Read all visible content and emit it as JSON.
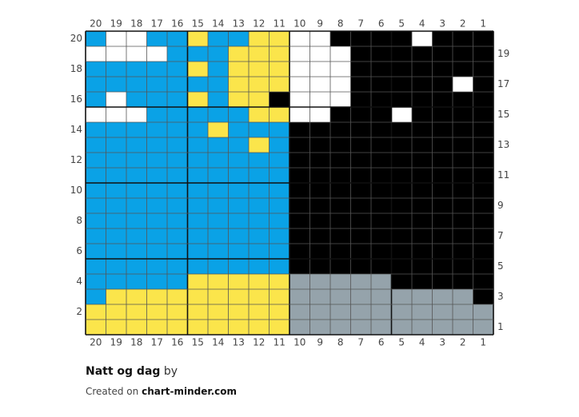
{
  "chart_data": {
    "type": "knitting-chart",
    "columns": 20,
    "rows": 20,
    "column_numbers_top": [
      "20",
      "19",
      "18",
      "17",
      "16",
      "15",
      "14",
      "13",
      "12",
      "11",
      "10",
      "9",
      "8",
      "7",
      "6",
      "5",
      "4",
      "3",
      "2",
      "1"
    ],
    "column_numbers_bottom": [
      "20",
      "19",
      "18",
      "17",
      "16",
      "15",
      "14",
      "13",
      "12",
      "11",
      "10",
      "9",
      "8",
      "7",
      "6",
      "5",
      "4",
      "3",
      "2",
      "1"
    ],
    "row_numbers_left": [
      "20",
      "18",
      "16",
      "14",
      "12",
      "10",
      "8",
      "6",
      "4",
      "2"
    ],
    "row_numbers_right": [
      "19",
      "17",
      "15",
      "13",
      "11",
      "9",
      "7",
      "5",
      "3",
      "1"
    ],
    "palette": {
      "B": "#0aa2e6",
      "Y": "#fbe54b",
      "W": "#ffffff",
      "K": "#000000",
      "G": "#95a3ab"
    },
    "grid_rows_top_to_bottom": [
      "BWWBBYBBYYWWKKKKWKKK",
      "WWWWBBBYYYWWWKKKKKKK",
      "BBBBBYBYYYWWWKKKKKKK",
      "BBBBBBBYYYWWWKKKKKWK",
      "BWBBBYBYYKWWWKKKKKKK",
      "WWWBBBBBYYWWKKKWKKKK",
      "BBBBBBYBBBKKKKKKKKKK",
      "BBBBBBBBYBKKKKKKKKKK",
      "BBBBBBBBBBKKKKKKKKKK",
      "BBBBBBBBBBKKKKKKKKKK",
      "BBBBBBBBBBKKKKKKKKKK",
      "BBBBBBBBBBKKKKKKKKKK",
      "BBBBBBBBBBKKKKKKKKKK",
      "BBBBBBBBBBKKKKKKKKKK",
      "BBBBBBBBBBKKKKKKKKKK",
      "BBBBBBBBBBKKKKKKKKKK",
      "BBBBBYYYYYGGGGGKKKKK",
      "BYYYYYYYYYGGGGGGGGGK",
      "YYYYYYYYYYGGGGGGGGGG",
      "YYYYYYYYYYGGGGGGGGGG"
    ],
    "grid_color": "#555555",
    "major_line_every": 5
  },
  "footer": {
    "title": "Natt og dag",
    "by": "by",
    "created_on": "Created on",
    "site": "chart-minder.com"
  }
}
